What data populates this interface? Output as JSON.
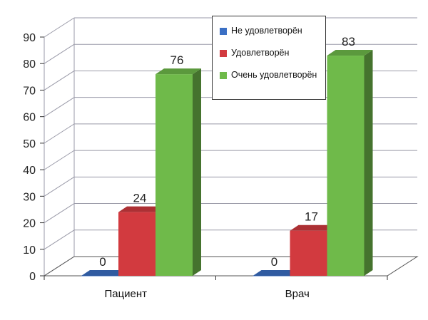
{
  "chart_data": {
    "type": "bar",
    "categories": [
      "Пациент",
      "Врач"
    ],
    "series": [
      {
        "name": "Не удовлетворён",
        "values": [
          0,
          0
        ],
        "color": "#3a6fc4"
      },
      {
        "name": "Удовлетворён",
        "values": [
          24,
          17
        ],
        "color": "#d23a3f"
      },
      {
        "name": "Очень удовлетворён",
        "values": [
          76,
          83
        ],
        "color": "#6fba4a"
      }
    ],
    "ylim": [
      0,
      90
    ],
    "yticks": [
      "0",
      "10",
      "20",
      "30",
      "40",
      "50",
      "60",
      "70",
      "80",
      "90"
    ],
    "data_labels": [
      [
        "0",
        "24",
        "76"
      ],
      [
        "0",
        "17",
        "83"
      ]
    ],
    "grid": true,
    "three_d": true,
    "legend_position": "top-right",
    "title": "",
    "xlabel": "",
    "ylabel": ""
  },
  "legend": {
    "items": [
      {
        "label": "Не удовлетворён",
        "color": "#3a6fc4"
      },
      {
        "label": "Удовлетворён",
        "color": "#d23a3f"
      },
      {
        "label": "Очень удовлетворён",
        "color": "#6fba4a"
      }
    ]
  }
}
